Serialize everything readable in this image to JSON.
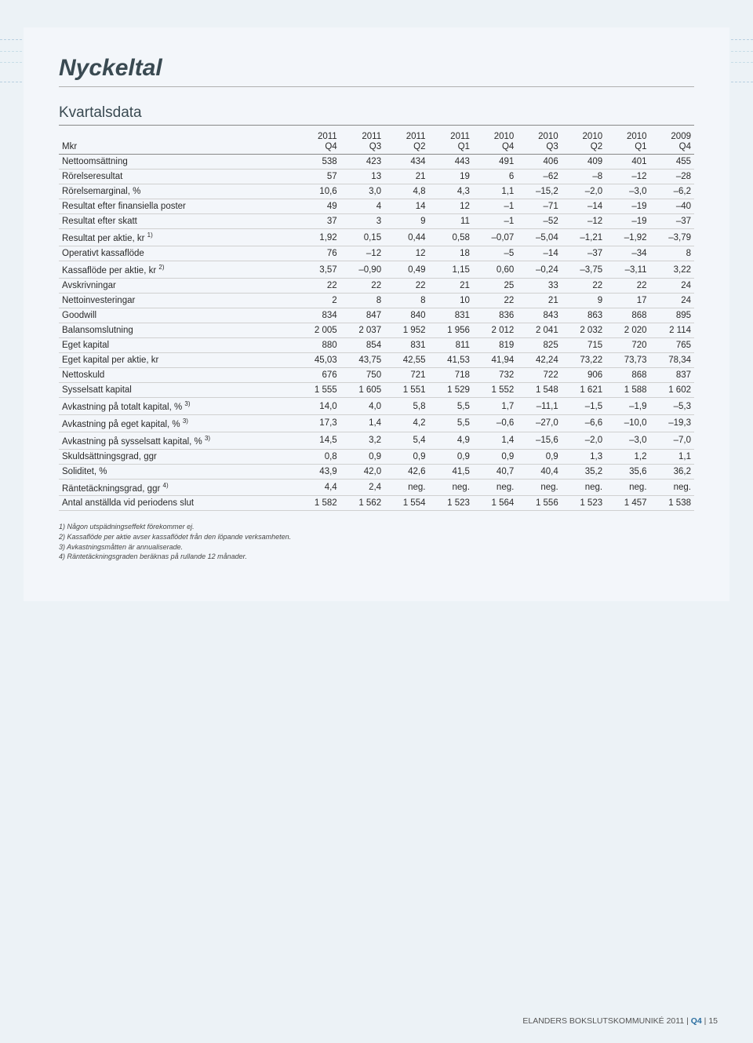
{
  "page": {
    "title": "Nyckeltal",
    "subtitle": "Kvartalsdata",
    "unit_header": "Mkr"
  },
  "columns": [
    {
      "year": "2011",
      "q": "Q4"
    },
    {
      "year": "2011",
      "q": "Q3"
    },
    {
      "year": "2011",
      "q": "Q2"
    },
    {
      "year": "2011",
      "q": "Q1"
    },
    {
      "year": "2010",
      "q": "Q4"
    },
    {
      "year": "2010",
      "q": "Q3"
    },
    {
      "year": "2010",
      "q": "Q2"
    },
    {
      "year": "2010",
      "q": "Q1"
    },
    {
      "year": "2009",
      "q": "Q4"
    }
  ],
  "rows": [
    {
      "label": "Nettoomsättning",
      "sup": "",
      "cells": [
        "538",
        "423",
        "434",
        "443",
        "491",
        "406",
        "409",
        "401",
        "455"
      ]
    },
    {
      "label": "Rörelseresultat",
      "sup": "",
      "cells": [
        "57",
        "13",
        "21",
        "19",
        "6",
        "–62",
        "–8",
        "–12",
        "–28"
      ]
    },
    {
      "label": "Rörelsemarginal, %",
      "sup": "",
      "cells": [
        "10,6",
        "3,0",
        "4,8",
        "4,3",
        "1,1",
        "–15,2",
        "–2,0",
        "–3,0",
        "–6,2"
      ]
    },
    {
      "label": "Resultat efter finansiella poster",
      "sup": "",
      "cells": [
        "49",
        "4",
        "14",
        "12",
        "–1",
        "–71",
        "–14",
        "–19",
        "–40"
      ]
    },
    {
      "label": "Resultat efter skatt",
      "sup": "",
      "cells": [
        "37",
        "3",
        "9",
        "11",
        "–1",
        "–52",
        "–12",
        "–19",
        "–37"
      ]
    },
    {
      "label": "Resultat per aktie, kr",
      "sup": "1)",
      "cells": [
        "1,92",
        "0,15",
        "0,44",
        "0,58",
        "–0,07",
        "–5,04",
        "–1,21",
        "–1,92",
        "–3,79"
      ]
    },
    {
      "label": "Operativt kassaflöde",
      "sup": "",
      "cells": [
        "76",
        "–12",
        "12",
        "18",
        "–5",
        "–14",
        "–37",
        "–34",
        "8"
      ]
    },
    {
      "label": "Kassaflöde per aktie, kr",
      "sup": "2)",
      "cells": [
        "3,57",
        "–0,90",
        "0,49",
        "1,15",
        "0,60",
        "–0,24",
        "–3,75",
        "–3,11",
        "3,22"
      ]
    },
    {
      "label": "Avskrivningar",
      "sup": "",
      "cells": [
        "22",
        "22",
        "22",
        "21",
        "25",
        "33",
        "22",
        "22",
        "24"
      ]
    },
    {
      "label": "Nettoinvesteringar",
      "sup": "",
      "cells": [
        "2",
        "8",
        "8",
        "10",
        "22",
        "21",
        "9",
        "17",
        "24"
      ]
    },
    {
      "label": "Goodwill",
      "sup": "",
      "cells": [
        "834",
        "847",
        "840",
        "831",
        "836",
        "843",
        "863",
        "868",
        "895"
      ]
    },
    {
      "label": "Balansomslutning",
      "sup": "",
      "cells": [
        "2 005",
        "2 037",
        "1 952",
        "1 956",
        "2 012",
        "2 041",
        "2 032",
        "2 020",
        "2 114"
      ]
    },
    {
      "label": "Eget kapital",
      "sup": "",
      "cells": [
        "880",
        "854",
        "831",
        "811",
        "819",
        "825",
        "715",
        "720",
        "765"
      ]
    },
    {
      "label": "Eget kapital per aktie, kr",
      "sup": "",
      "cells": [
        "45,03",
        "43,75",
        "42,55",
        "41,53",
        "41,94",
        "42,24",
        "73,22",
        "73,73",
        "78,34"
      ]
    },
    {
      "label": "Nettoskuld",
      "sup": "",
      "cells": [
        "676",
        "750",
        "721",
        "718",
        "732",
        "722",
        "906",
        "868",
        "837"
      ]
    },
    {
      "label": "Sysselsatt kapital",
      "sup": "",
      "cells": [
        "1 555",
        "1 605",
        "1 551",
        "1 529",
        "1 552",
        "1 548",
        "1 621",
        "1 588",
        "1 602"
      ]
    },
    {
      "label": "Avkastning på totalt kapital, %",
      "sup": "3)",
      "cells": [
        "14,0",
        "4,0",
        "5,8",
        "5,5",
        "1,7",
        "–11,1",
        "–1,5",
        "–1,9",
        "–5,3"
      ]
    },
    {
      "label": "Avkastning på eget kapital, %",
      "sup": "3)",
      "cells": [
        "17,3",
        "1,4",
        "4,2",
        "5,5",
        "–0,6",
        "–27,0",
        "–6,6",
        "–10,0",
        "–19,3"
      ]
    },
    {
      "label": "Avkastning på sysselsatt kapital, %",
      "sup": "3)",
      "cells": [
        "14,5",
        "3,2",
        "5,4",
        "4,9",
        "1,4",
        "–15,6",
        "–2,0",
        "–3,0",
        "–7,0"
      ]
    },
    {
      "label": "Skuldsättningsgrad, ggr",
      "sup": "",
      "cells": [
        "0,8",
        "0,9",
        "0,9",
        "0,9",
        "0,9",
        "0,9",
        "1,3",
        "1,2",
        "1,1"
      ]
    },
    {
      "label": "Soliditet, %",
      "sup": "",
      "cells": [
        "43,9",
        "42,0",
        "42,6",
        "41,5",
        "40,7",
        "40,4",
        "35,2",
        "35,6",
        "36,2"
      ]
    },
    {
      "label": "Räntetäckningsgrad, ggr",
      "sup": "4)",
      "cells": [
        "4,4",
        "2,4",
        "neg.",
        "neg.",
        "neg.",
        "neg.",
        "neg.",
        "neg.",
        "neg."
      ]
    },
    {
      "label": "Antal anställda vid periodens slut",
      "sup": "",
      "cells": [
        "1 582",
        "1 562",
        "1 554",
        "1 523",
        "1 564",
        "1 556",
        "1 523",
        "1 457",
        "1 538"
      ]
    }
  ],
  "footnotes": [
    "1) Någon utspädningseffekt förekommer ej.",
    "2) Kassaflöde per aktie avser kassaflödet från den löpande verksamheten.",
    "3) Avkastningsmåtten är annualiserade.",
    "4) Räntetäckningsgraden beräknas på rullande 12 månader."
  ],
  "footer": {
    "prefix": "ELANDERS BOKSLUTSKOMMUNIKÉ 2011",
    "sep": " | ",
    "qtr": "Q4",
    "page": "15"
  }
}
